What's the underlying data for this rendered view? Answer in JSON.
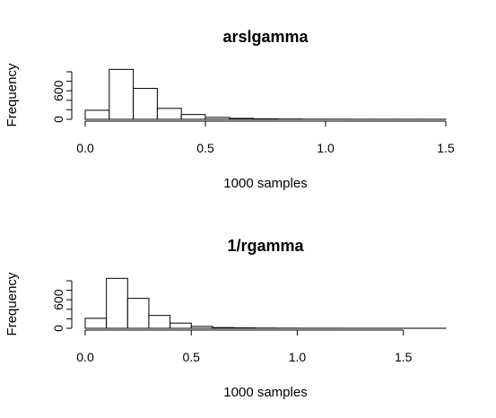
{
  "chart_data": [
    {
      "type": "bar",
      "title": "arslgamma",
      "xlabel": "1000 samples",
      "ylabel": "Frequency",
      "xlim": [
        0,
        1.5
      ],
      "ylim": [
        0,
        1000
      ],
      "x_ticks": [
        0.0,
        0.5,
        1.0,
        1.5
      ],
      "x_tick_labels": [
        "0.0",
        "0.5",
        "1.0",
        "1.5"
      ],
      "y_ticks": [
        0,
        200,
        400,
        600,
        800,
        1000
      ],
      "y_tick_labels": [
        "0",
        "",
        "",
        "600",
        "",
        ""
      ],
      "bin_edges": [
        0,
        0.1,
        0.2,
        0.3,
        0.4,
        0.5,
        0.6,
        0.7,
        0.8,
        0.9,
        1.0,
        1.1,
        1.2,
        1.3,
        1.4,
        1.5
      ],
      "values": [
        190,
        1050,
        650,
        230,
        100,
        40,
        20,
        10,
        5,
        3,
        2,
        1,
        1,
        1,
        1
      ]
    },
    {
      "type": "bar",
      "title": "1/rgamma",
      "xlabel": "1000 samples",
      "ylabel": "Frequency",
      "xlim": [
        0,
        1.7
      ],
      "ylim": [
        0,
        1000
      ],
      "x_ticks": [
        0.0,
        0.5,
        1.0,
        1.5
      ],
      "x_tick_labels": [
        "0.0",
        "0.5",
        "1.0",
        "1.5"
      ],
      "y_ticks": [
        0,
        200,
        400,
        600,
        800,
        1000
      ],
      "y_tick_labels": [
        "0",
        "",
        "",
        "600",
        "",
        ""
      ],
      "bin_edges": [
        0,
        0.1,
        0.2,
        0.3,
        0.4,
        0.5,
        0.6,
        0.7,
        0.8,
        0.9,
        1.0,
        1.1,
        1.2,
        1.3,
        1.4,
        1.5,
        1.6,
        1.7
      ],
      "values": [
        210,
        1050,
        630,
        270,
        110,
        40,
        15,
        10,
        5,
        3,
        2,
        2,
        1,
        1,
        1,
        1,
        1
      ]
    }
  ]
}
